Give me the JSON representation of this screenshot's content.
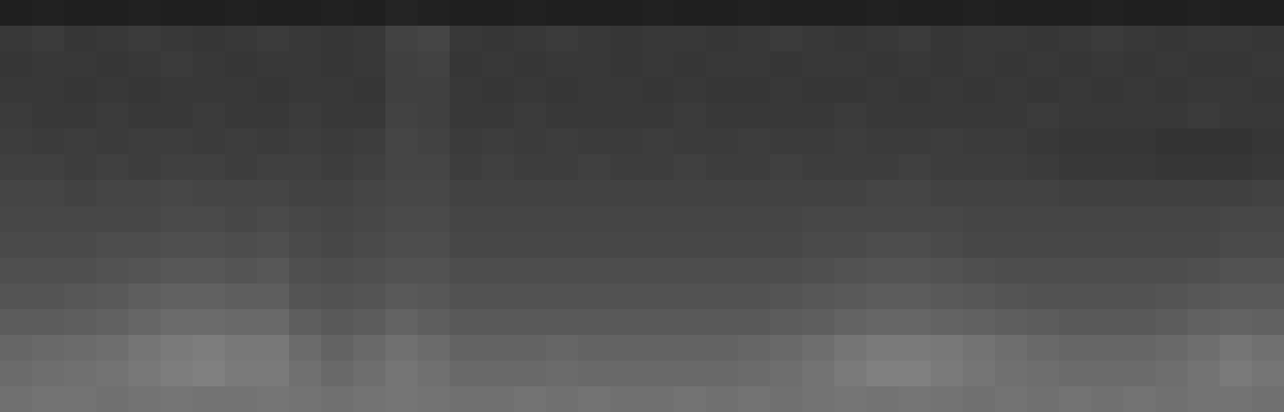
{
  "chart_data": {
    "type": "heatmap",
    "tick_labels": false,
    "zlim": [
      0,
      1
    ],
    "z": [
      [
        0.12,
        0.13,
        0.12,
        0.12,
        0.13,
        0.12,
        0.12,
        0.13,
        0.12,
        0.12,
        0.13,
        0.12,
        0.14,
        0.13,
        0.12,
        0.12,
        0.13,
        0.12,
        0.12,
        0.12,
        0.13,
        0.12,
        0.12,
        0.13,
        0.12,
        0.12,
        0.12,
        0.13,
        0.12,
        0.12,
        0.13,
        0.12,
        0.12,
        0.12,
        0.13,
        0.12,
        0.12,
        0.13,
        0.12,
        0.12
      ],
      [
        0.22,
        0.23,
        0.21,
        0.22,
        0.23,
        0.22,
        0.21,
        0.22,
        0.23,
        0.22,
        0.21,
        0.22,
        0.26,
        0.27,
        0.22,
        0.21,
        0.22,
        0.23,
        0.22,
        0.21,
        0.22,
        0.22,
        0.21,
        0.22,
        0.23,
        0.22,
        0.21,
        0.22,
        0.23,
        0.21,
        0.22,
        0.22,
        0.21,
        0.22,
        0.23,
        0.22,
        0.21,
        0.22,
        0.22,
        0.21
      ],
      [
        0.21,
        0.22,
        0.22,
        0.21,
        0.22,
        0.23,
        0.22,
        0.21,
        0.22,
        0.22,
        0.21,
        0.22,
        0.25,
        0.26,
        0.21,
        0.22,
        0.21,
        0.22,
        0.22,
        0.21,
        0.22,
        0.21,
        0.22,
        0.22,
        0.21,
        0.22,
        0.22,
        0.21,
        0.22,
        0.21,
        0.22,
        0.21,
        0.22,
        0.21,
        0.22,
        0.21,
        0.22,
        0.21,
        0.21,
        0.22
      ],
      [
        0.22,
        0.22,
        0.21,
        0.22,
        0.21,
        0.22,
        0.22,
        0.22,
        0.21,
        0.22,
        0.22,
        0.21,
        0.25,
        0.25,
        0.22,
        0.21,
        0.22,
        0.21,
        0.22,
        0.22,
        0.21,
        0.22,
        0.21,
        0.21,
        0.22,
        0.21,
        0.21,
        0.22,
        0.21,
        0.22,
        0.21,
        0.22,
        0.21,
        0.22,
        0.21,
        0.22,
        0.21,
        0.22,
        0.22,
        0.21
      ],
      [
        0.23,
        0.22,
        0.22,
        0.23,
        0.22,
        0.22,
        0.23,
        0.22,
        0.22,
        0.23,
        0.22,
        0.22,
        0.26,
        0.25,
        0.22,
        0.22,
        0.23,
        0.22,
        0.22,
        0.22,
        0.22,
        0.23,
        0.22,
        0.22,
        0.22,
        0.22,
        0.23,
        0.22,
        0.22,
        0.22,
        0.22,
        0.22,
        0.23,
        0.22,
        0.22,
        0.22,
        0.22,
        0.23,
        0.22,
        0.22
      ],
      [
        0.24,
        0.23,
        0.24,
        0.23,
        0.24,
        0.24,
        0.23,
        0.24,
        0.23,
        0.24,
        0.23,
        0.24,
        0.27,
        0.26,
        0.23,
        0.24,
        0.23,
        0.24,
        0.23,
        0.23,
        0.24,
        0.23,
        0.23,
        0.24,
        0.23,
        0.23,
        0.24,
        0.23,
        0.23,
        0.24,
        0.23,
        0.23,
        0.22,
        0.21,
        0.21,
        0.21,
        0.2,
        0.2,
        0.2,
        0.21
      ],
      [
        0.25,
        0.25,
        0.24,
        0.25,
        0.24,
        0.25,
        0.25,
        0.24,
        0.25,
        0.25,
        0.24,
        0.25,
        0.27,
        0.27,
        0.24,
        0.25,
        0.24,
        0.24,
        0.25,
        0.24,
        0.24,
        0.25,
        0.24,
        0.24,
        0.25,
        0.24,
        0.24,
        0.24,
        0.25,
        0.24,
        0.24,
        0.24,
        0.23,
        0.22,
        0.22,
        0.22,
        0.21,
        0.21,
        0.21,
        0.22
      ],
      [
        0.27,
        0.27,
        0.26,
        0.27,
        0.27,
        0.28,
        0.27,
        0.27,
        0.27,
        0.26,
        0.26,
        0.27,
        0.28,
        0.28,
        0.26,
        0.26,
        0.26,
        0.26,
        0.26,
        0.26,
        0.26,
        0.26,
        0.26,
        0.26,
        0.26,
        0.26,
        0.26,
        0.27,
        0.27,
        0.26,
        0.26,
        0.26,
        0.26,
        0.25,
        0.25,
        0.25,
        0.25,
        0.25,
        0.25,
        0.26
      ],
      [
        0.28,
        0.28,
        0.28,
        0.28,
        0.28,
        0.29,
        0.29,
        0.28,
        0.29,
        0.28,
        0.27,
        0.28,
        0.29,
        0.29,
        0.27,
        0.27,
        0.27,
        0.27,
        0.27,
        0.27,
        0.27,
        0.27,
        0.27,
        0.27,
        0.27,
        0.28,
        0.28,
        0.28,
        0.28,
        0.28,
        0.27,
        0.27,
        0.27,
        0.27,
        0.27,
        0.27,
        0.27,
        0.27,
        0.28,
        0.28
      ],
      [
        0.29,
        0.29,
        0.29,
        0.3,
        0.3,
        0.31,
        0.31,
        0.3,
        0.31,
        0.29,
        0.28,
        0.29,
        0.3,
        0.3,
        0.28,
        0.28,
        0.28,
        0.28,
        0.28,
        0.28,
        0.28,
        0.28,
        0.28,
        0.28,
        0.28,
        0.29,
        0.29,
        0.3,
        0.3,
        0.29,
        0.28,
        0.28,
        0.28,
        0.28,
        0.28,
        0.28,
        0.28,
        0.28,
        0.29,
        0.29
      ],
      [
        0.31,
        0.31,
        0.31,
        0.32,
        0.33,
        0.34,
        0.34,
        0.33,
        0.34,
        0.31,
        0.3,
        0.31,
        0.32,
        0.32,
        0.3,
        0.3,
        0.3,
        0.3,
        0.3,
        0.3,
        0.3,
        0.3,
        0.3,
        0.3,
        0.3,
        0.31,
        0.32,
        0.33,
        0.33,
        0.32,
        0.31,
        0.3,
        0.3,
        0.3,
        0.3,
        0.3,
        0.3,
        0.31,
        0.32,
        0.32
      ],
      [
        0.33,
        0.33,
        0.34,
        0.35,
        0.37,
        0.38,
        0.38,
        0.37,
        0.37,
        0.33,
        0.32,
        0.33,
        0.35,
        0.34,
        0.32,
        0.32,
        0.32,
        0.32,
        0.32,
        0.32,
        0.32,
        0.32,
        0.32,
        0.32,
        0.33,
        0.34,
        0.35,
        0.36,
        0.36,
        0.35,
        0.34,
        0.33,
        0.32,
        0.32,
        0.32,
        0.32,
        0.33,
        0.34,
        0.35,
        0.35
      ],
      [
        0.36,
        0.36,
        0.37,
        0.38,
        0.4,
        0.42,
        0.42,
        0.41,
        0.41,
        0.37,
        0.35,
        0.36,
        0.39,
        0.37,
        0.35,
        0.35,
        0.35,
        0.35,
        0.35,
        0.35,
        0.35,
        0.35,
        0.35,
        0.35,
        0.36,
        0.37,
        0.39,
        0.4,
        0.4,
        0.39,
        0.38,
        0.37,
        0.36,
        0.35,
        0.35,
        0.35,
        0.36,
        0.38,
        0.39,
        0.38
      ],
      [
        0.4,
        0.41,
        0.42,
        0.43,
        0.46,
        0.48,
        0.49,
        0.47,
        0.47,
        0.42,
        0.39,
        0.41,
        0.44,
        0.42,
        0.39,
        0.39,
        0.39,
        0.4,
        0.39,
        0.39,
        0.39,
        0.39,
        0.39,
        0.4,
        0.41,
        0.43,
        0.46,
        0.48,
        0.48,
        0.47,
        0.45,
        0.43,
        0.41,
        0.4,
        0.4,
        0.4,
        0.41,
        0.43,
        0.46,
        0.44
      ],
      [
        0.42,
        0.43,
        0.44,
        0.45,
        0.47,
        0.49,
        0.5,
        0.48,
        0.48,
        0.44,
        0.41,
        0.43,
        0.46,
        0.44,
        0.41,
        0.41,
        0.41,
        0.42,
        0.41,
        0.41,
        0.41,
        0.41,
        0.41,
        0.42,
        0.43,
        0.45,
        0.48,
        0.5,
        0.5,
        0.48,
        0.46,
        0.44,
        0.43,
        0.42,
        0.42,
        0.42,
        0.43,
        0.45,
        0.48,
        0.46
      ],
      [
        0.44,
        0.45,
        0.45,
        0.44,
        0.45,
        0.46,
        0.45,
        0.45,
        0.46,
        0.45,
        0.44,
        0.45,
        0.46,
        0.45,
        0.44,
        0.44,
        0.45,
        0.44,
        0.45,
        0.44,
        0.44,
        0.45,
        0.44,
        0.45,
        0.44,
        0.45,
        0.46,
        0.45,
        0.46,
        0.45,
        0.44,
        0.45,
        0.44,
        0.45,
        0.44,
        0.45,
        0.44,
        0.45,
        0.45,
        0.44
      ]
    ]
  }
}
